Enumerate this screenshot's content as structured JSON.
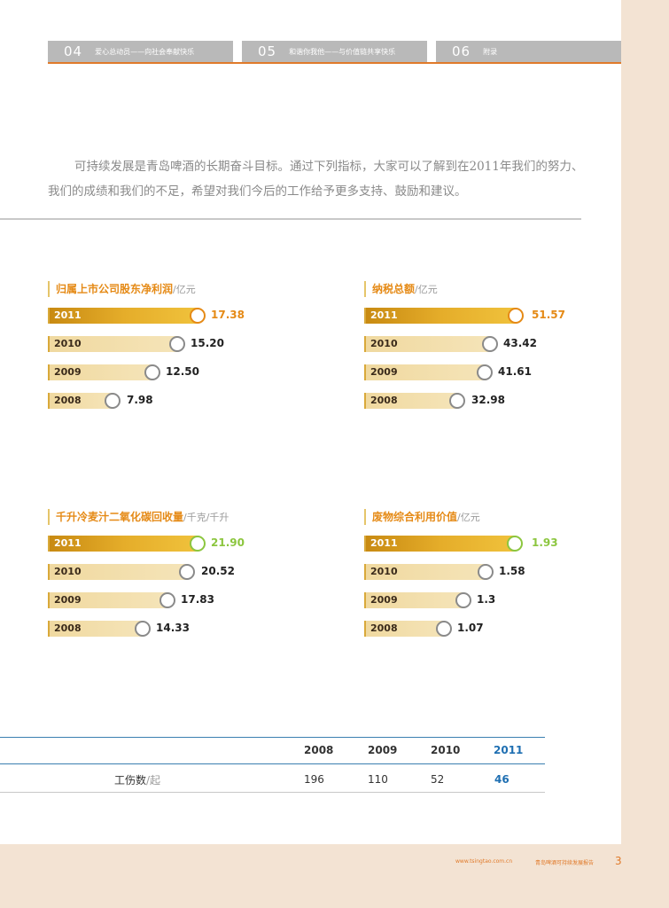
{
  "nav": {
    "tabs": [
      {
        "num": "04",
        "label": "爱心总动员——向社会奉献快乐"
      },
      {
        "num": "05",
        "label": "和谐你我他——与价值链共享快乐"
      },
      {
        "num": "06",
        "label": "附录"
      }
    ]
  },
  "intro": "可持续发展是青岛啤酒的长期奋斗目标。通过下列指标，大家可以了解到在2011年我们的努力、我们的成绩和我们的不足，希望对我们今后的工作给予更多支持、鼓励和建议。",
  "metrics": [
    {
      "title": "归属上市公司股东净利润",
      "unit": "/亿元",
      "rows": [
        {
          "year": "2011",
          "value": "17.38"
        },
        {
          "year": "2010",
          "value": "15.20"
        },
        {
          "year": "2009",
          "value": "12.50"
        },
        {
          "year": "2008",
          "value": "7.98"
        }
      ]
    },
    {
      "title": "纳税总额",
      "unit": "/亿元",
      "rows": [
        {
          "year": "2011",
          "value": "51.57"
        },
        {
          "year": "2010",
          "value": "43.42"
        },
        {
          "year": "2009",
          "value": "41.61"
        },
        {
          "year": "2008",
          "value": "32.98"
        }
      ]
    },
    {
      "title": "千升冷麦汁二氧化碳回收量",
      "unit": "/千克/千升",
      "rows": [
        {
          "year": "2011",
          "value": "21.90"
        },
        {
          "year": "2010",
          "value": "20.52"
        },
        {
          "year": "2009",
          "value": "17.83"
        },
        {
          "year": "2008",
          "value": "14.33"
        }
      ]
    },
    {
      "title": "废物综合利用价值",
      "unit": "/亿元",
      "rows": [
        {
          "year": "2011",
          "value": "1.93"
        },
        {
          "year": "2010",
          "value": "1.58"
        },
        {
          "year": "2009",
          "value": "1.3"
        },
        {
          "year": "2008",
          "value": "1.07"
        }
      ]
    }
  ],
  "table": {
    "headers": [
      "2008",
      "2009",
      "2010",
      "2011"
    ],
    "row": {
      "label": "工伤数",
      "unit": "/起",
      "values": [
        "196",
        "110",
        "52",
        "46"
      ]
    }
  },
  "footer": {
    "url": "www.tsingtao.com.cn",
    "title": "青岛啤酒可持续发展报告",
    "page": "3"
  },
  "colors": {
    "accent": "#e07a2a",
    "bar_highlight": "#e5ad2a",
    "bar_normal": "#f3dfac",
    "green_highlight": "#8cc63f",
    "table_blue": "#1f6fb2"
  }
}
